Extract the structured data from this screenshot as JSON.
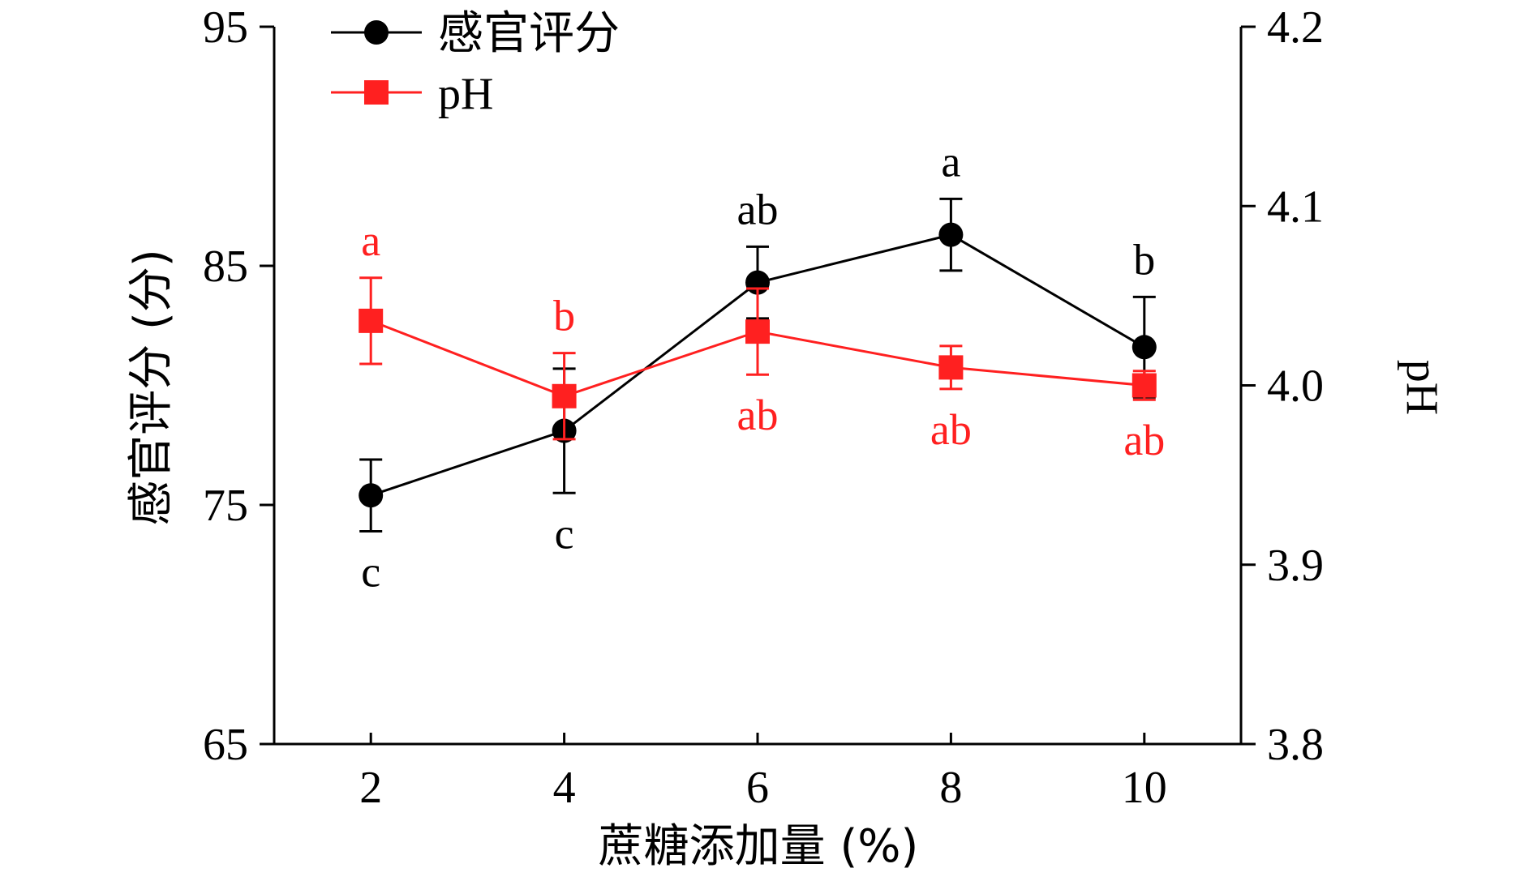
{
  "chart_data": {
    "type": "line",
    "xlabel": "蔗糖添加量 (%)",
    "ylabel_left": "感官评分 (分)",
    "ylabel_right": "pH",
    "x": [
      2,
      4,
      6,
      8,
      10
    ],
    "x_ticks": [
      "2",
      "4",
      "6",
      "8",
      "10"
    ],
    "xlim": [
      1,
      11
    ],
    "ylim_left": [
      65,
      95
    ],
    "yticks_left": [
      "65",
      "75",
      "85",
      "95"
    ],
    "ylim_right": [
      3.8,
      4.2
    ],
    "yticks_right": [
      "3.8",
      "3.9",
      "4.0",
      "4.1",
      "4.2"
    ],
    "legend_position": "top-left",
    "series": [
      {
        "name": "感官评分",
        "axis": "left",
        "color": "#000000",
        "marker": "circle",
        "values": [
          75.4,
          78.1,
          84.3,
          86.3,
          81.6
        ],
        "errors": [
          1.5,
          2.6,
          1.5,
          1.5,
          2.1
        ],
        "sig_labels": [
          "c",
          "c",
          "ab",
          "a",
          "b"
        ],
        "sig_label_position": [
          "below",
          "below",
          "above",
          "above",
          "above"
        ]
      },
      {
        "name": "pH",
        "axis": "right",
        "color": "#ff2020",
        "marker": "square",
        "values": [
          4.036,
          3.994,
          4.03,
          4.01,
          4.0
        ],
        "errors": [
          0.024,
          0.024,
          0.024,
          0.012,
          0.008
        ],
        "sig_labels": [
          "a",
          "b",
          "ab",
          "ab",
          "ab"
        ],
        "sig_label_position": [
          "above",
          "above",
          "below",
          "below",
          "below"
        ]
      }
    ]
  }
}
